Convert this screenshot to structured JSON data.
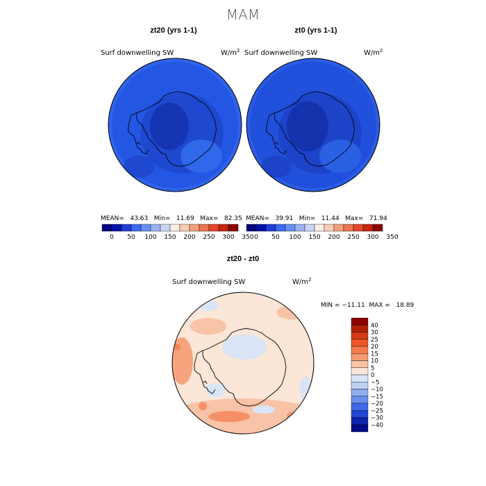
{
  "title": "MAM",
  "panels": [
    {
      "header": "zt20 (yrs 1-1)",
      "variable": "Surf downwelling SW",
      "units_base": "W/m",
      "units_exp": "2",
      "stats": "MEAN=   43.63   Min=   11.69   Max=   82.35"
    },
    {
      "header": "zt0 (yrs 1-1)",
      "variable": "Surf downwelling SW",
      "units_base": "W/m",
      "units_exp": "2",
      "stats": "MEAN=   39.91   Min=   11.44   Max=   71.94"
    },
    {
      "header": "zt20 - zt0",
      "variable": "Surf downwelling SW",
      "units_base": "W/m",
      "units_exp": "2",
      "stats": "MIN = −11.11  MAX =   18.89"
    }
  ],
  "colorbar_horizontal": {
    "colors": [
      "#00007f",
      "#0011aa",
      "#1f3fd6",
      "#3f6af0",
      "#6a8ff5",
      "#9db3f7",
      "#c8d6f5",
      "#fbeee6",
      "#f7cdb5",
      "#f3a07a",
      "#ee7350",
      "#e4472a",
      "#c4260f",
      "#8b0000"
    ],
    "labels": [
      "0",
      "50",
      "100",
      "150",
      "200",
      "250",
      "300",
      "350"
    ]
  },
  "colorbar_vertical": {
    "colors": [
      "#8b0000",
      "#b31f08",
      "#d63a17",
      "#ef5525",
      "#f47a4b",
      "#f69c74",
      "#f8c3a6",
      "#fbe6d8",
      "#d9e5f6",
      "#bdd0f4",
      "#91adf0",
      "#6a8fee",
      "#3f6aea",
      "#2246d6",
      "#0f23b0",
      "#000b85"
    ],
    "labels": [
      "40",
      "30",
      "25",
      "20",
      "15",
      "10",
      "5",
      "0",
      "−5",
      "−10",
      "−15",
      "−20",
      "−25",
      "−30",
      "−40"
    ]
  }
}
